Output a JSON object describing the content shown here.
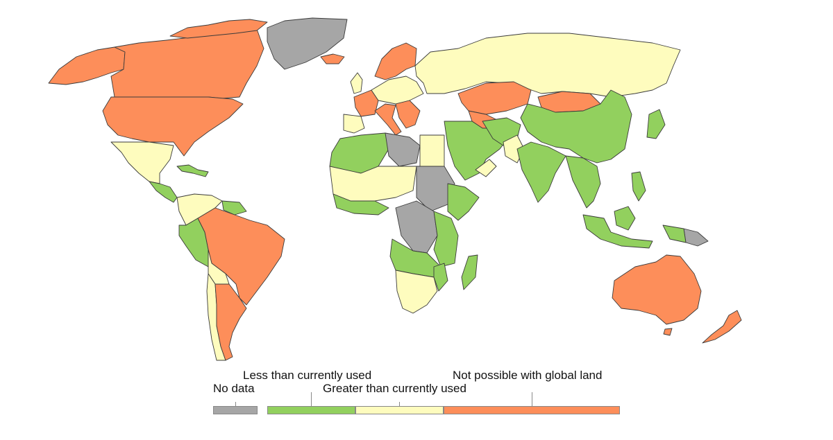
{
  "colors": {
    "no_data": "#a6a6a6",
    "less": "#92d05e",
    "greater": "#fefcbe",
    "not_possible": "#fd8e5a",
    "border": "#3a3a3a"
  },
  "legend": {
    "no_data": "No data",
    "less": "Less than currently used",
    "greater": "Greater than currently used",
    "not_possible": "Not possible with global land"
  }
}
